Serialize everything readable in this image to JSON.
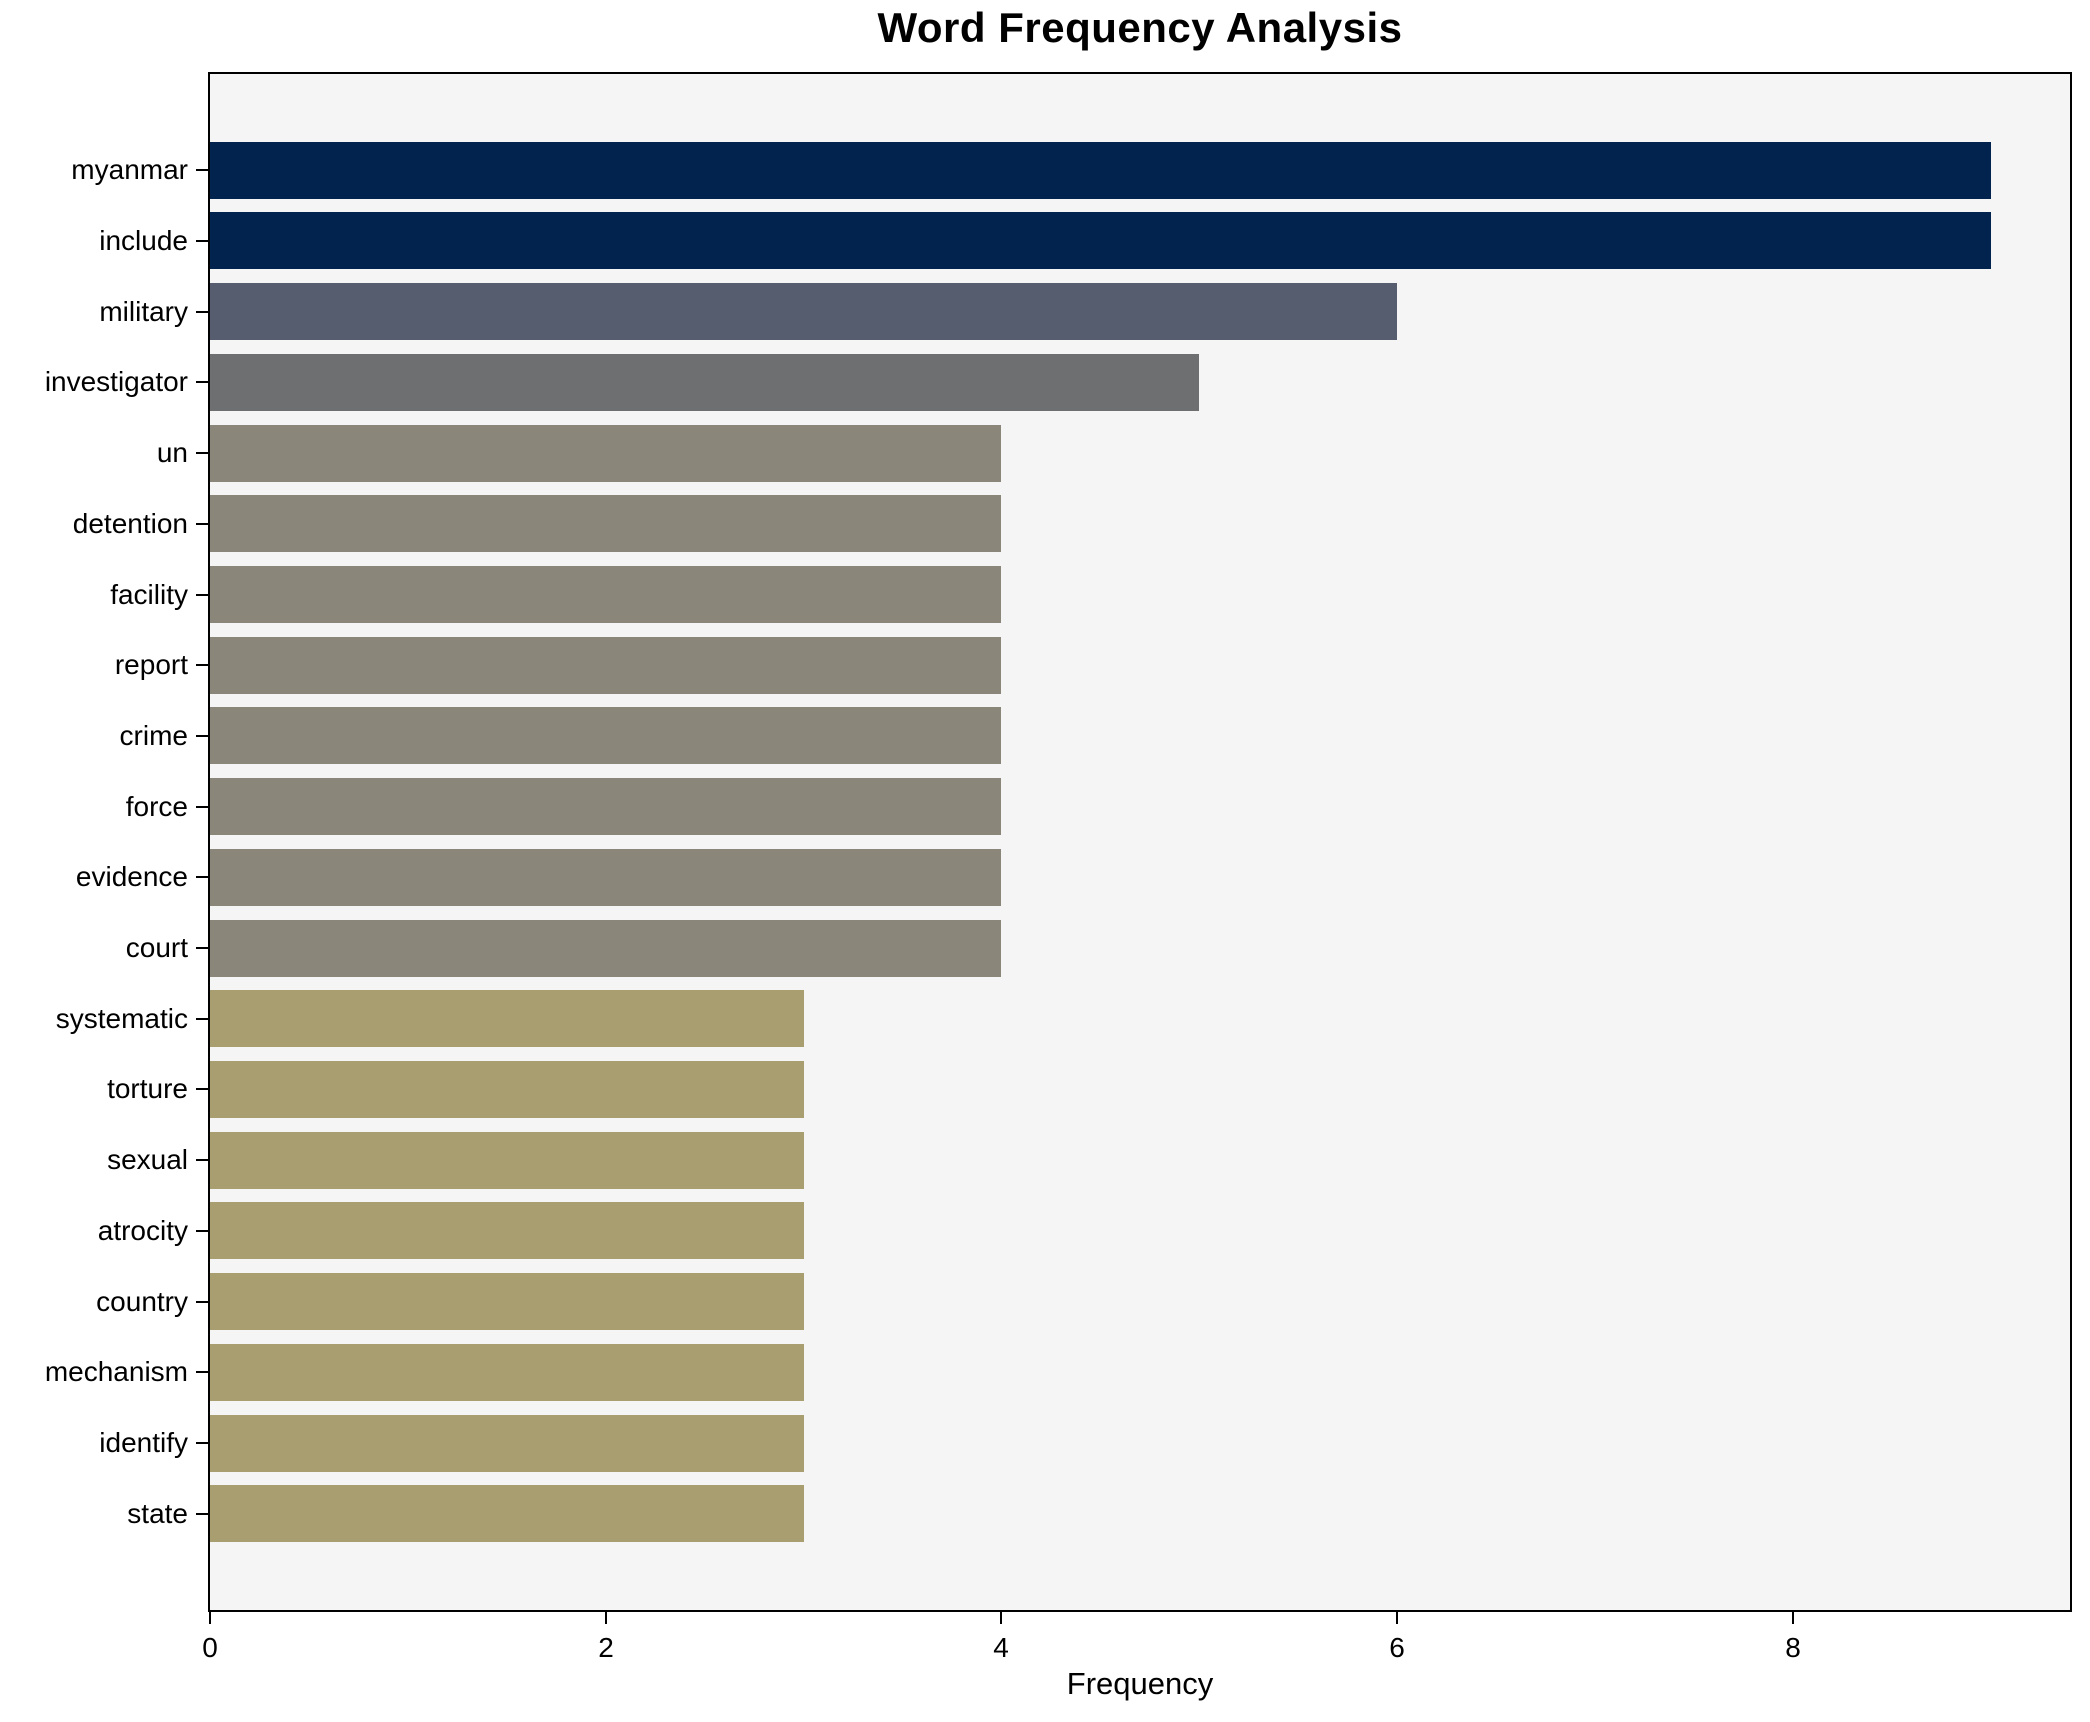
{
  "figure": {
    "title": "Word Frequency Analysis",
    "xlabel": "Frequency"
  },
  "chart_data": {
    "type": "bar",
    "orientation": "horizontal",
    "title": "Word Frequency Analysis",
    "xlabel": "Frequency",
    "ylabel": "",
    "categories": [
      "myanmar",
      "include",
      "military",
      "investigator",
      "un",
      "detention",
      "facility",
      "report",
      "crime",
      "force",
      "evidence",
      "court",
      "systematic",
      "torture",
      "sexual",
      "atrocity",
      "country",
      "mechanism",
      "identify",
      "state"
    ],
    "values": [
      9,
      9,
      6,
      5,
      4,
      4,
      4,
      4,
      4,
      4,
      4,
      4,
      3,
      3,
      3,
      3,
      3,
      3,
      3,
      3
    ],
    "bar_colors": [
      "#02234e",
      "#02234e",
      "#565d6f",
      "#6e6f71",
      "#8a877a",
      "#8a877a",
      "#8a877a",
      "#8a877a",
      "#8a877a",
      "#8a877a",
      "#8a877a",
      "#8a877a",
      "#a89e70",
      "#a89e70",
      "#a89e70",
      "#a89e70",
      "#a89e70",
      "#a89e70",
      "#a89e70",
      "#a89e70"
    ],
    "xlim": [
      0,
      9.4
    ],
    "xticks": [
      0,
      2,
      4,
      6,
      8
    ],
    "grid": false,
    "legend": null,
    "colors": {
      "plot_bg": "#f5f5f5",
      "figure_bg": "#ffffff",
      "spine": "#000000",
      "text": "#000000"
    }
  }
}
